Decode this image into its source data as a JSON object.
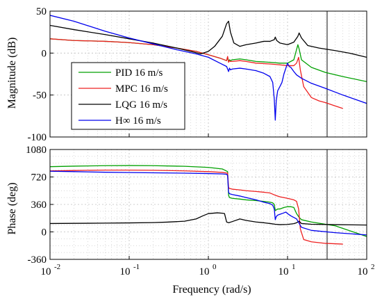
{
  "chart_data": [
    {
      "type": "line",
      "panel": "magnitude",
      "ylabel": "Magnitude (dB)",
      "xscale": "log",
      "xlim": [
        0.01,
        100
      ],
      "ylim": [
        -100,
        50
      ],
      "yticks": [
        50,
        0,
        -50,
        -100
      ],
      "ytick_labels": [
        "50",
        "0",
        "-50",
        "-100"
      ],
      "grid": true,
      "legend_placement": "bottom-left",
      "vline_x": 31.6,
      "series": [
        {
          "name": "PID 16 m/s",
          "color": "#00a000",
          "x": [
            0.01,
            0.02,
            0.05,
            0.1,
            0.2,
            0.4,
            0.7,
            1.0,
            1.4,
            1.7,
            1.75,
            1.8,
            1.85,
            1.9,
            2.0,
            2.5,
            3,
            4,
            6,
            8,
            10,
            12,
            13.5,
            14,
            15,
            20,
            30,
            50,
            100
          ],
          "y": [
            17,
            15,
            14,
            12.5,
            10,
            6,
            2,
            -2,
            -6,
            -9,
            -5,
            -10,
            -8,
            -9,
            -8,
            -7,
            -8,
            -10,
            -11,
            -12,
            -12,
            -8,
            10,
            5,
            -8,
            -17,
            -23,
            -28,
            -34
          ]
        },
        {
          "name": "MPC 16 m/s",
          "color": "#ee2020",
          "x": [
            0.01,
            0.02,
            0.05,
            0.1,
            0.2,
            0.4,
            0.7,
            1.0,
            1.4,
            1.7,
            1.75,
            1.8,
            1.85,
            1.9,
            2.0,
            2.5,
            3,
            4,
            6,
            8,
            10,
            12,
            13,
            13.8,
            14.5,
            16,
            20,
            25,
            30,
            40,
            50
          ],
          "y": [
            17,
            15,
            14,
            12.5,
            10,
            6,
            2,
            -2,
            -6,
            -9,
            -4,
            -11,
            -9,
            -10,
            -10,
            -9,
            -10,
            -12,
            -13,
            -14,
            -15,
            -15,
            -12,
            -5,
            -20,
            -40,
            -53,
            -57,
            -59,
            -63,
            -66
          ]
        },
        {
          "name": "LQG 16 m/s",
          "color": "#000000",
          "x": [
            0.01,
            0.02,
            0.05,
            0.1,
            0.2,
            0.4,
            0.6,
            0.8,
            1.0,
            1.2,
            1.5,
            1.7,
            1.8,
            1.9,
            2.1,
            2.5,
            3,
            4,
            5,
            6,
            6.8,
            7,
            7.3,
            8,
            10,
            12,
            13.5,
            14,
            15,
            18,
            25,
            40,
            60,
            100
          ],
          "y": [
            33,
            28,
            22,
            17,
            12,
            6,
            2,
            -1,
            2,
            8,
            20,
            35,
            38,
            25,
            12,
            8,
            10,
            12,
            14,
            14,
            16,
            19,
            15,
            12,
            10,
            13,
            20,
            24,
            18,
            9,
            6,
            3,
            0,
            -5
          ]
        },
        {
          "name": "H∞ 16 m/s",
          "color": "#0000ee",
          "x": [
            0.01,
            0.02,
            0.05,
            0.1,
            0.2,
            0.4,
            0.7,
            1.0,
            1.4,
            1.7,
            1.75,
            1.8,
            1.85,
            1.9,
            2.0,
            2.5,
            3,
            4,
            5,
            6,
            6.5,
            6.8,
            7.0,
            7.2,
            7.5,
            8,
            8.5,
            9,
            10,
            10.5,
            11,
            12,
            13,
            15,
            20,
            30,
            50,
            100
          ],
          "y": [
            45,
            38,
            26,
            18,
            11,
            4,
            -1,
            -5,
            -12,
            -16,
            -19,
            -22,
            -18,
            -20,
            -19,
            -18,
            -19,
            -21,
            -24,
            -28,
            -35,
            -55,
            -80,
            -57,
            -45,
            -40,
            -35,
            -25,
            -12,
            -16,
            -17,
            -22,
            -26,
            -30,
            -36,
            -42,
            -50,
            -60
          ]
        }
      ],
      "xtick_labels": [
        "10-2",
        "10-1",
        "100",
        "101",
        "102"
      ]
    },
    {
      "type": "line",
      "panel": "phase",
      "ylabel": "Phase (deg)",
      "xlabel": "Frequency  (rad/s)",
      "xscale": "log",
      "xlim": [
        0.01,
        100
      ],
      "ylim": [
        -360,
        1080
      ],
      "yticks": [
        1080,
        720,
        360,
        0,
        -360
      ],
      "ytick_labels": [
        "1080",
        "720",
        "360",
        "0",
        "-360"
      ],
      "xtick_exponents": [
        "-2",
        "-1",
        "0",
        "1",
        "2"
      ],
      "grid": true,
      "vline_x": 31.6,
      "series": [
        {
          "name": "PID 16 m/s",
          "color": "#00a000",
          "x": [
            0.01,
            0.02,
            0.05,
            0.1,
            0.2,
            0.5,
            1.0,
            1.5,
            1.75,
            1.8,
            1.85,
            2.0,
            2.5,
            3,
            4,
            5,
            6,
            6.5,
            6.8,
            7.0,
            7.5,
            8,
            9,
            10,
            11,
            12,
            13,
            14,
            15,
            20,
            40,
            100
          ],
          "y": [
            855,
            862,
            868,
            870,
            868,
            860,
            845,
            825,
            790,
            480,
            450,
            440,
            430,
            420,
            410,
            400,
            390,
            380,
            360,
            280,
            300,
            300,
            320,
            330,
            330,
            320,
            240,
            190,
            160,
            130,
            80,
            -60
          ]
        },
        {
          "name": "MPC 16 m/s",
          "color": "#ee2020",
          "x": [
            0.01,
            0.02,
            0.05,
            0.1,
            0.2,
            0.5,
            1.0,
            1.5,
            1.75,
            1.8,
            1.85,
            2.0,
            2.5,
            3,
            4,
            5,
            6,
            7,
            8,
            10,
            12,
            13,
            13.8,
            14.5,
            16,
            20,
            30,
            50
          ],
          "y": [
            800,
            805,
            810,
            810,
            808,
            800,
            790,
            780,
            770,
            580,
            570,
            560,
            550,
            540,
            530,
            520,
            510,
            480,
            460,
            440,
            420,
            400,
            300,
            40,
            -100,
            -130,
            -150,
            -160
          ]
        },
        {
          "name": "LQG 16 m/s",
          "color": "#000000",
          "x": [
            0.01,
            0.02,
            0.05,
            0.1,
            0.2,
            0.3,
            0.5,
            0.7,
            0.85,
            1.0,
            1.3,
            1.5,
            1.6,
            1.7,
            1.8,
            2.0,
            2.5,
            3,
            4,
            5,
            6,
            7,
            8,
            10,
            12,
            13,
            14,
            15,
            20,
            40,
            100
          ],
          "y": [
            110,
            112,
            115,
            118,
            122,
            128,
            140,
            170,
            210,
            240,
            250,
            245,
            240,
            130,
            120,
            135,
            170,
            150,
            130,
            120,
            110,
            100,
            95,
            98,
            108,
            120,
            140,
            110,
            100,
            95,
            90
          ]
        },
        {
          "name": "H∞ 16 m/s",
          "color": "#0000ee",
          "x": [
            0.01,
            0.02,
            0.05,
            0.1,
            0.2,
            0.5,
            1.0,
            1.5,
            1.7,
            1.75,
            1.8,
            1.85,
            2.0,
            2.5,
            3,
            4,
            5,
            6,
            6.5,
            6.8,
            7.0,
            7.2,
            7.5,
            8,
            8.5,
            9,
            9.5,
            10,
            11,
            12,
            13,
            15,
            20,
            40,
            100
          ],
          "y": [
            795,
            790,
            782,
            778,
            775,
            770,
            765,
            760,
            755,
            740,
            520,
            500,
            490,
            470,
            450,
            420,
            390,
            370,
            350,
            300,
            160,
            200,
            220,
            230,
            240,
            250,
            260,
            240,
            210,
            190,
            170,
            60,
            20,
            -10,
            -40
          ]
        }
      ]
    }
  ],
  "legend": [
    {
      "label": "PID 16 m/s",
      "color": "#00a000"
    },
    {
      "label": "MPC 16 m/s",
      "color": "#ee2020"
    },
    {
      "label": "LQG 16 m/s",
      "color": "#000000"
    },
    {
      "label": "H∞ 16 m/s",
      "color": "#0000ee"
    }
  ]
}
